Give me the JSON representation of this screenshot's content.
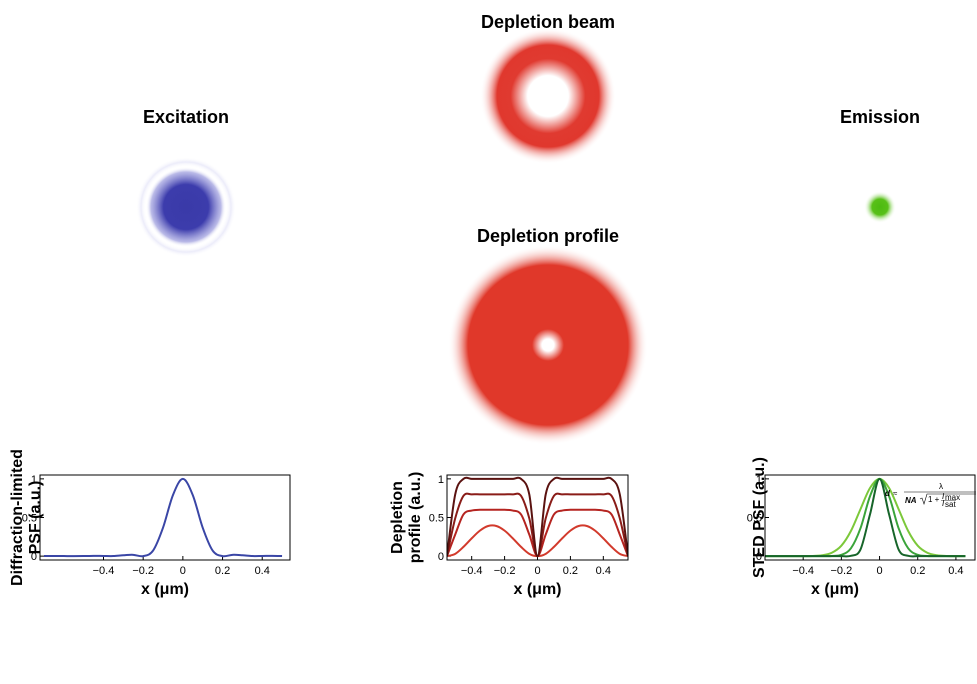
{
  "panels": {
    "excitation": "Excitation",
    "depletion_beam": "Depletion beam",
    "depletion_profile": "Depletion profile",
    "emission": "Emission"
  },
  "chart_data": [
    {
      "type": "line",
      "xlabel": "x (μm)",
      "ylabel": [
        "Diffraction-limited",
        "PSF (a.u.)"
      ],
      "xlim": [
        -0.72,
        0.54
      ],
      "ylim": [
        -0.05,
        1.05
      ],
      "xticks": [
        {
          "value": -0.4,
          "label": "−0.4"
        },
        {
          "value": -0.2,
          "label": "−0.2"
        },
        0,
        0.2,
        0.4
      ],
      "yticks": [
        0,
        0.5,
        1
      ],
      "x": [
        -0.7,
        -0.65,
        -0.6,
        -0.55,
        -0.5,
        -0.45,
        -0.4,
        -0.35,
        -0.3,
        -0.25,
        -0.2,
        -0.15,
        -0.1,
        -0.05,
        0,
        0.05,
        0.1,
        0.15,
        0.2,
        0.25,
        0.3,
        0.35,
        0.4,
        0.45,
        0.5
      ],
      "series": [
        {
          "color": "#3a46a6",
          "values": [
            0.001,
            0.002,
            0.001,
            0,
            0.001,
            0.004,
            0.002,
            0.001,
            0.012,
            0.017,
            0,
            0.072,
            0.368,
            0.79,
            1,
            0.79,
            0.368,
            0.072,
            0,
            0.017,
            0.012,
            0.001,
            0.002,
            0.004,
            0.001
          ]
        }
      ]
    },
    {
      "type": "line",
      "xlabel": "x (μm)",
      "ylabel": [
        "Depletion",
        "profile (a.u.)"
      ],
      "xlim": [
        -0.55,
        0.55
      ],
      "ylim": [
        -0.05,
        1.05
      ],
      "xticks": [
        {
          "value": -0.4,
          "label": "−0.4"
        },
        {
          "value": -0.2,
          "label": "−0.2"
        },
        0,
        0.2,
        0.4
      ],
      "yticks": [
        0,
        0.5,
        1
      ],
      "x": [
        -0.55,
        -0.5,
        -0.45,
        -0.4,
        -0.35,
        -0.3,
        -0.25,
        -0.2,
        -0.15,
        -0.1,
        -0.05,
        0,
        0.05,
        0.1,
        0.15,
        0.2,
        0.25,
        0.3,
        0.35,
        0.4,
        0.45,
        0.5,
        0.55
      ],
      "series": [
        {
          "color": "#d23a2c",
          "values": [
            0,
            0.03,
            0.12,
            0.23,
            0.33,
            0.39,
            0.39,
            0.33,
            0.23,
            0.12,
            0.03,
            0,
            0.03,
            0.12,
            0.23,
            0.33,
            0.39,
            0.39,
            0.33,
            0.23,
            0.12,
            0.03,
            0
          ]
        },
        {
          "color": "#b52420",
          "values": [
            0,
            0.28,
            0.54,
            0.59,
            0.6,
            0.6,
            0.6,
            0.6,
            0.59,
            0.54,
            0.28,
            0,
            0.28,
            0.54,
            0.59,
            0.6,
            0.6,
            0.6,
            0.6,
            0.59,
            0.54,
            0.28,
            0
          ]
        },
        {
          "color": "#8a1c18",
          "values": [
            0,
            0.49,
            0.78,
            0.8,
            0.8,
            0.8,
            0.8,
            0.8,
            0.8,
            0.78,
            0.49,
            0,
            0.49,
            0.78,
            0.8,
            0.8,
            0.8,
            0.8,
            0.8,
            0.8,
            0.78,
            0.49,
            0
          ]
        },
        {
          "color": "#5a1210",
          "values": [
            0,
            0.8,
            1,
            1,
            1,
            1,
            1,
            1,
            1,
            1,
            0.8,
            0,
            0.8,
            1,
            1,
            1,
            1,
            1,
            1,
            1,
            1,
            0.8,
            0
          ]
        }
      ]
    },
    {
      "type": "line",
      "xlabel": "x (μm)",
      "ylabel": [
        "STED PSF (a.u.)"
      ],
      "xlim": [
        -0.6,
        0.5
      ],
      "ylim": [
        -0.05,
        1.05
      ],
      "xticks": [
        {
          "value": -0.4,
          "label": "−0.4"
        },
        {
          "value": -0.2,
          "label": "−0.2"
        },
        0,
        0.2,
        0.4
      ],
      "yticks": [
        0,
        0.5,
        1
      ],
      "annotation": {
        "lhs": "d",
        "approx": "≈",
        "numerator": "λ",
        "denominator": "NA",
        "radicand": "1 +",
        "imax": "I",
        "imax_sub": "max",
        "isat": "I",
        "isat_sub": "sat"
      },
      "x": [
        -0.6,
        -0.55,
        -0.5,
        -0.45,
        -0.4,
        -0.35,
        -0.3,
        -0.25,
        -0.2,
        -0.15,
        -0.1,
        -0.05,
        0,
        0.05,
        0.1,
        0.15,
        0.2,
        0.25,
        0.3,
        0.35,
        0.4,
        0.45
      ],
      "series": [
        {
          "color": "#7cc83a",
          "values": [
            0,
            0,
            0,
            0,
            0,
            0.002,
            0.011,
            0.044,
            0.135,
            0.325,
            0.607,
            0.882,
            1,
            0.882,
            0.607,
            0.325,
            0.135,
            0.044,
            0.011,
            0.002,
            0,
            0
          ]
        },
        {
          "color": "#3aa43a",
          "values": [
            0,
            0,
            0,
            0,
            0,
            0,
            0,
            0.002,
            0.017,
            0.101,
            0.36,
            0.775,
            1,
            0.775,
            0.36,
            0.101,
            0.017,
            0.002,
            0,
            0,
            0,
            0
          ]
        },
        {
          "color": "#17652a",
          "values": [
            0,
            0,
            0,
            0,
            0,
            0,
            0,
            0,
            0,
            0.004,
            0.085,
            0.54,
            1,
            0.54,
            0.085,
            0.004,
            0,
            0,
            0,
            0,
            0,
            0
          ]
        }
      ]
    }
  ]
}
